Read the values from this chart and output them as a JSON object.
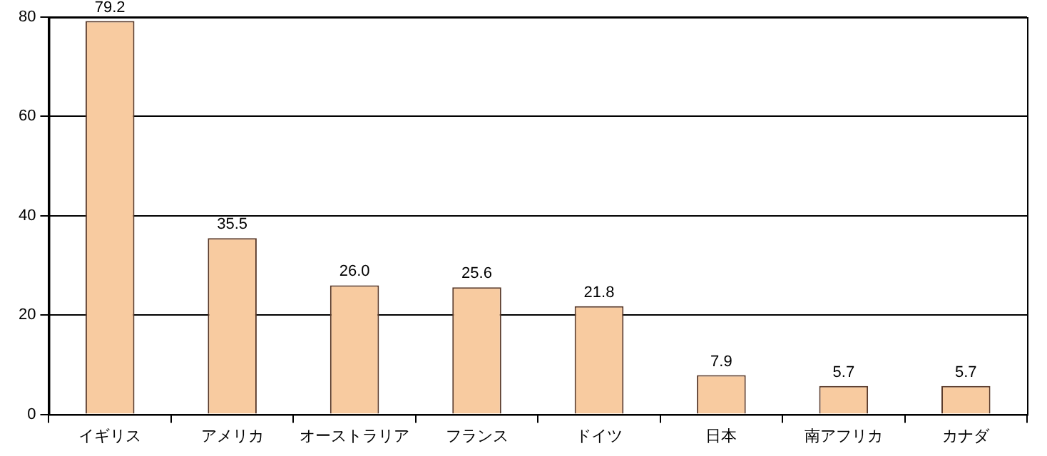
{
  "chart_data": {
    "type": "bar",
    "categories": [
      "イギリス",
      "アメリカ",
      "オーストラリア",
      "フランス",
      "ドイツ",
      "日本",
      "南アフリカ",
      "カナダ"
    ],
    "values": [
      79.2,
      35.5,
      26.0,
      25.6,
      21.8,
      7.9,
      5.7,
      5.7
    ],
    "value_labels": [
      "79.2",
      "35.5",
      "26.0",
      "25.6",
      "21.8",
      "7.9",
      "5.7",
      "5.7"
    ],
    "color": "#f8cba0",
    "ylim": [
      0,
      80
    ],
    "yticks": [
      0,
      20,
      40,
      60,
      80
    ],
    "grid": "y"
  }
}
